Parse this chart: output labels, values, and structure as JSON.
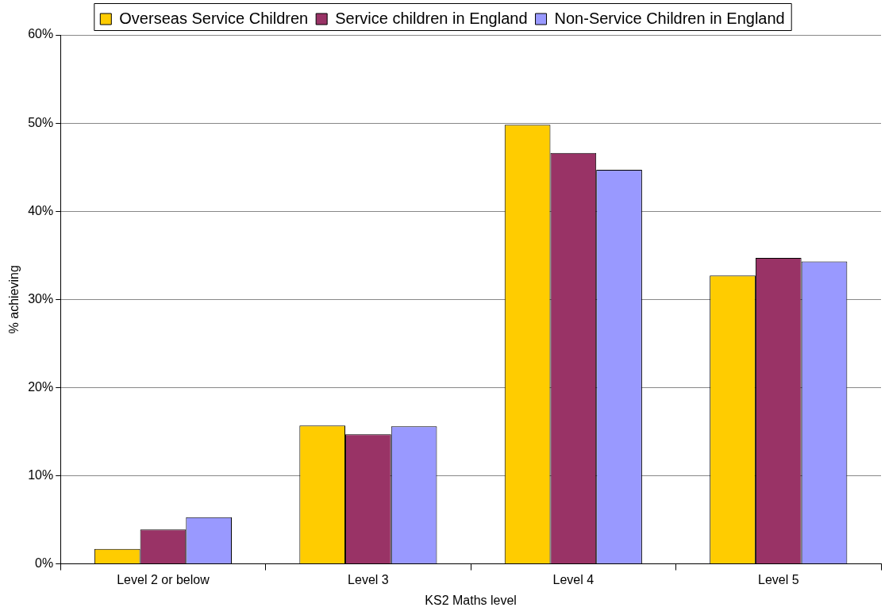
{
  "chart_data": {
    "type": "bar",
    "xlabel": "KS2 Maths level",
    "ylabel": "% achieving",
    "categories": [
      "Level 2 or below",
      "Level 3",
      "Level 4",
      "Level 5"
    ],
    "series": [
      {
        "name": "Overseas Service Children",
        "color": "#ffcc00",
        "values": [
          1.7,
          15.7,
          49.8,
          32.7
        ]
      },
      {
        "name": "Service children in England",
        "color": "#993366",
        "values": [
          3.9,
          14.7,
          46.6,
          34.7
        ]
      },
      {
        "name": "Non-Service Children in England",
        "color": "#9999ff",
        "values": [
          5.3,
          15.6,
          44.7,
          34.3
        ]
      }
    ],
    "ylim": [
      0,
      60
    ],
    "yticks": [
      {
        "value": 0,
        "label": "0%"
      },
      {
        "value": 10,
        "label": "10%"
      },
      {
        "value": 20,
        "label": "20%"
      },
      {
        "value": 30,
        "label": "30%"
      },
      {
        "value": 40,
        "label": "40%"
      },
      {
        "value": 50,
        "label": "50%"
      },
      {
        "value": 60,
        "label": "60%"
      }
    ],
    "grid": "y",
    "legend": "top"
  }
}
